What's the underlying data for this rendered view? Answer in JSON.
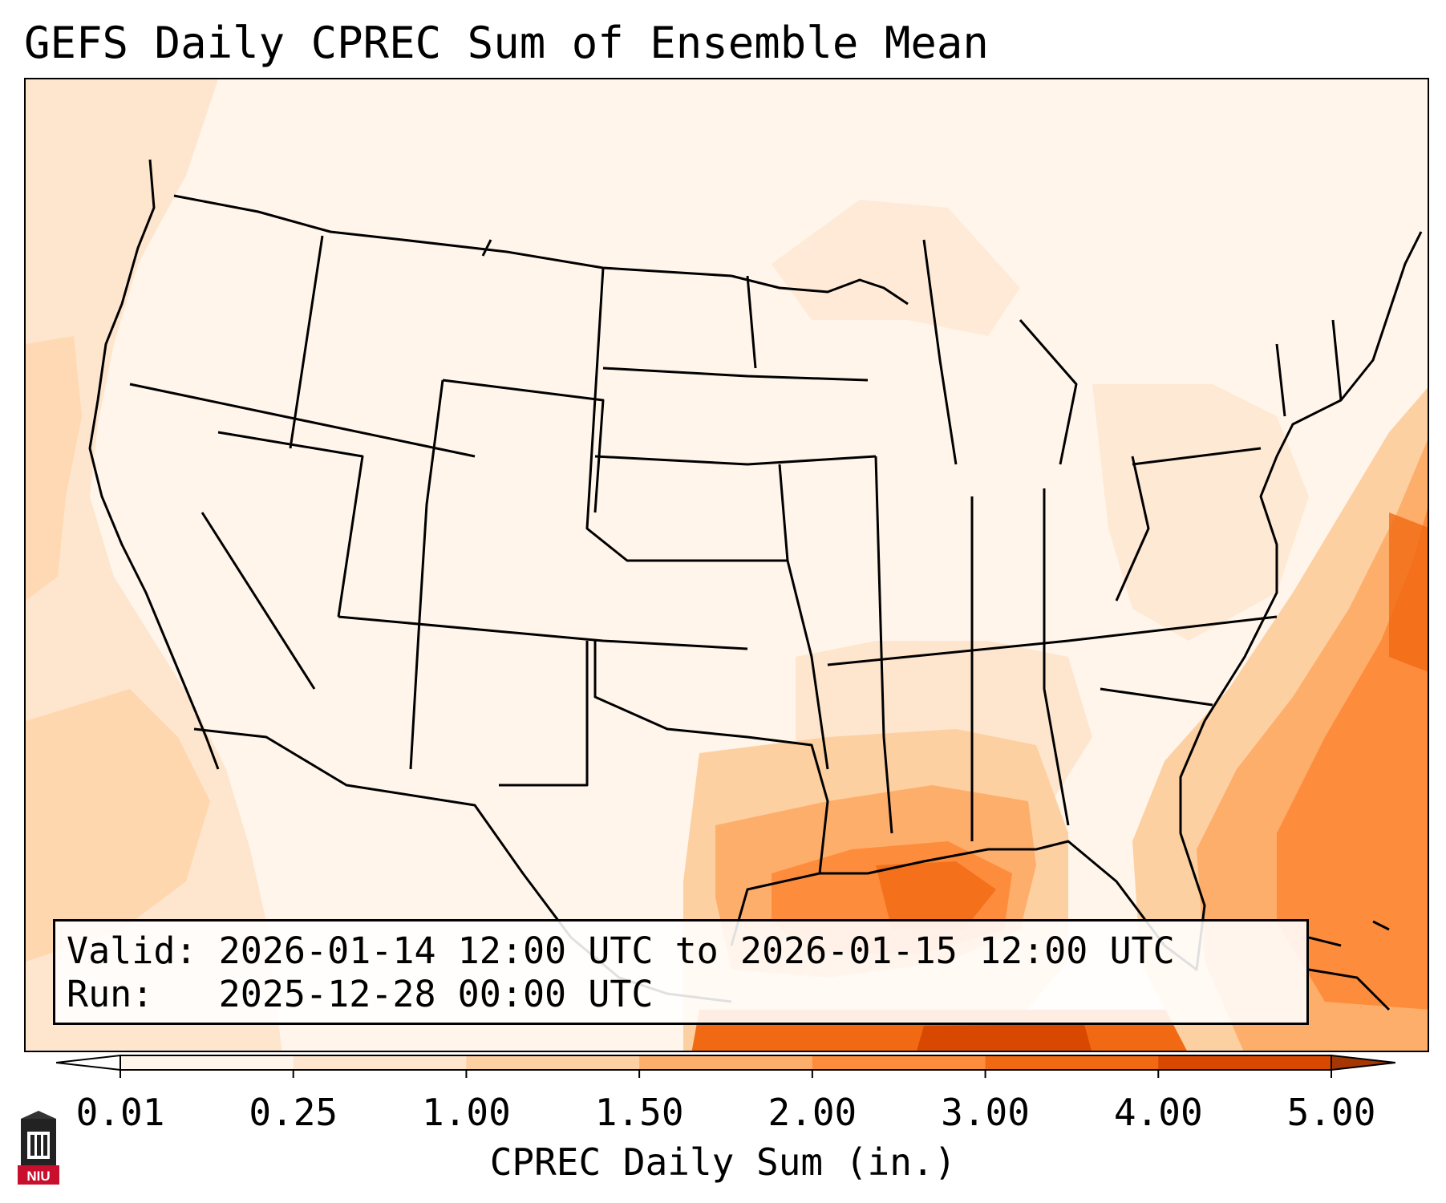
{
  "title": "GEFS Daily CPREC Sum of Ensemble Mean",
  "info": {
    "valid_label": "Valid:",
    "valid_value": "2026-01-14 12:00 UTC to 2026-01-15 12:00 UTC",
    "run_label": "Run:",
    "run_value": "2025-12-28 00:00 UTC"
  },
  "colorbar": {
    "label": "CPREC Daily Sum (in.)",
    "ticks": [
      "0.01",
      "0.25",
      "1.00",
      "1.50",
      "2.00",
      "3.00",
      "4.00",
      "5.00"
    ],
    "colors": [
      "#fff5eb",
      "#fee6ce",
      "#fdd0a2",
      "#fdae6b",
      "#fd8d3c",
      "#f16913",
      "#d94801"
    ],
    "over_color": "#a63603",
    "under_color": "#ffffff"
  },
  "logo": {
    "text": "NIU",
    "icon": "niu-tower-logo-icon"
  }
}
